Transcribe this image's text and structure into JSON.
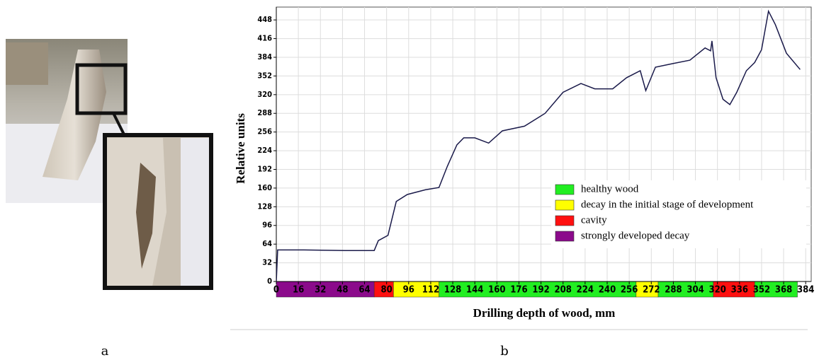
{
  "panel_labels": [
    "a",
    "b"
  ],
  "chart_data": {
    "type": "line",
    "xlabel": "Drilling depth of wood, mm",
    "ylabel": "Relative units",
    "xlim": [
      0,
      388
    ],
    "ylim": [
      0,
      470
    ],
    "xticks": [
      0,
      16,
      32,
      48,
      64,
      80,
      96,
      112,
      128,
      144,
      160,
      176,
      192,
      208,
      224,
      240,
      256,
      272,
      288,
      304,
      320,
      336,
      352,
      368,
      384
    ],
    "yticks": [
      0,
      32,
      64,
      96,
      128,
      160,
      192,
      224,
      256,
      288,
      320,
      352,
      384,
      416,
      448
    ],
    "grid": true,
    "series": [
      {
        "color": "#1a1a4a",
        "x": [
          0,
          1,
          20,
          50,
          71,
          74,
          81,
          87,
          95,
          108,
          118,
          124,
          131,
          136,
          144,
          154,
          164,
          180,
          195,
          208,
          221,
          231,
          244,
          254,
          264,
          268,
          275,
          287,
          300,
          311,
          315,
          316,
          319,
          324,
          329,
          334,
          341,
          347,
          352,
          357,
          362,
          370,
          380
        ],
        "values": [
          0,
          54,
          54,
          53,
          53,
          70,
          79,
          137,
          149,
          157,
          161,
          197,
          234,
          246,
          246,
          237,
          258,
          266,
          288,
          324,
          339,
          330,
          330,
          349,
          361,
          327,
          367,
          373,
          379,
          400,
          395,
          412,
          349,
          312,
          303,
          324,
          361,
          375,
          397,
          463,
          440,
          391,
          363
        ]
      }
    ],
    "bands": [
      {
        "from": 0,
        "to": 71,
        "color": "#8b0a8b"
      },
      {
        "from": 71,
        "to": 85,
        "color": "#ff1010"
      },
      {
        "from": 85,
        "to": 118,
        "color": "#ffff00"
      },
      {
        "from": 118,
        "to": 261,
        "color": "#22ee22"
      },
      {
        "from": 261,
        "to": 277,
        "color": "#ffff00"
      },
      {
        "from": 277,
        "to": 317,
        "color": "#22ee22"
      },
      {
        "from": 317,
        "to": 347,
        "color": "#ff1010"
      },
      {
        "from": 347,
        "to": 378,
        "color": "#22ee22"
      }
    ],
    "legend": [
      {
        "label": "healthy wood",
        "color": "#22ee22"
      },
      {
        "label": "decay in the initial stage of development",
        "color": "#ffff00"
      },
      {
        "label": "cavity",
        "color": "#ff1010"
      },
      {
        "label": "strongly developed decay",
        "color": "#8b0a8b"
      }
    ]
  }
}
